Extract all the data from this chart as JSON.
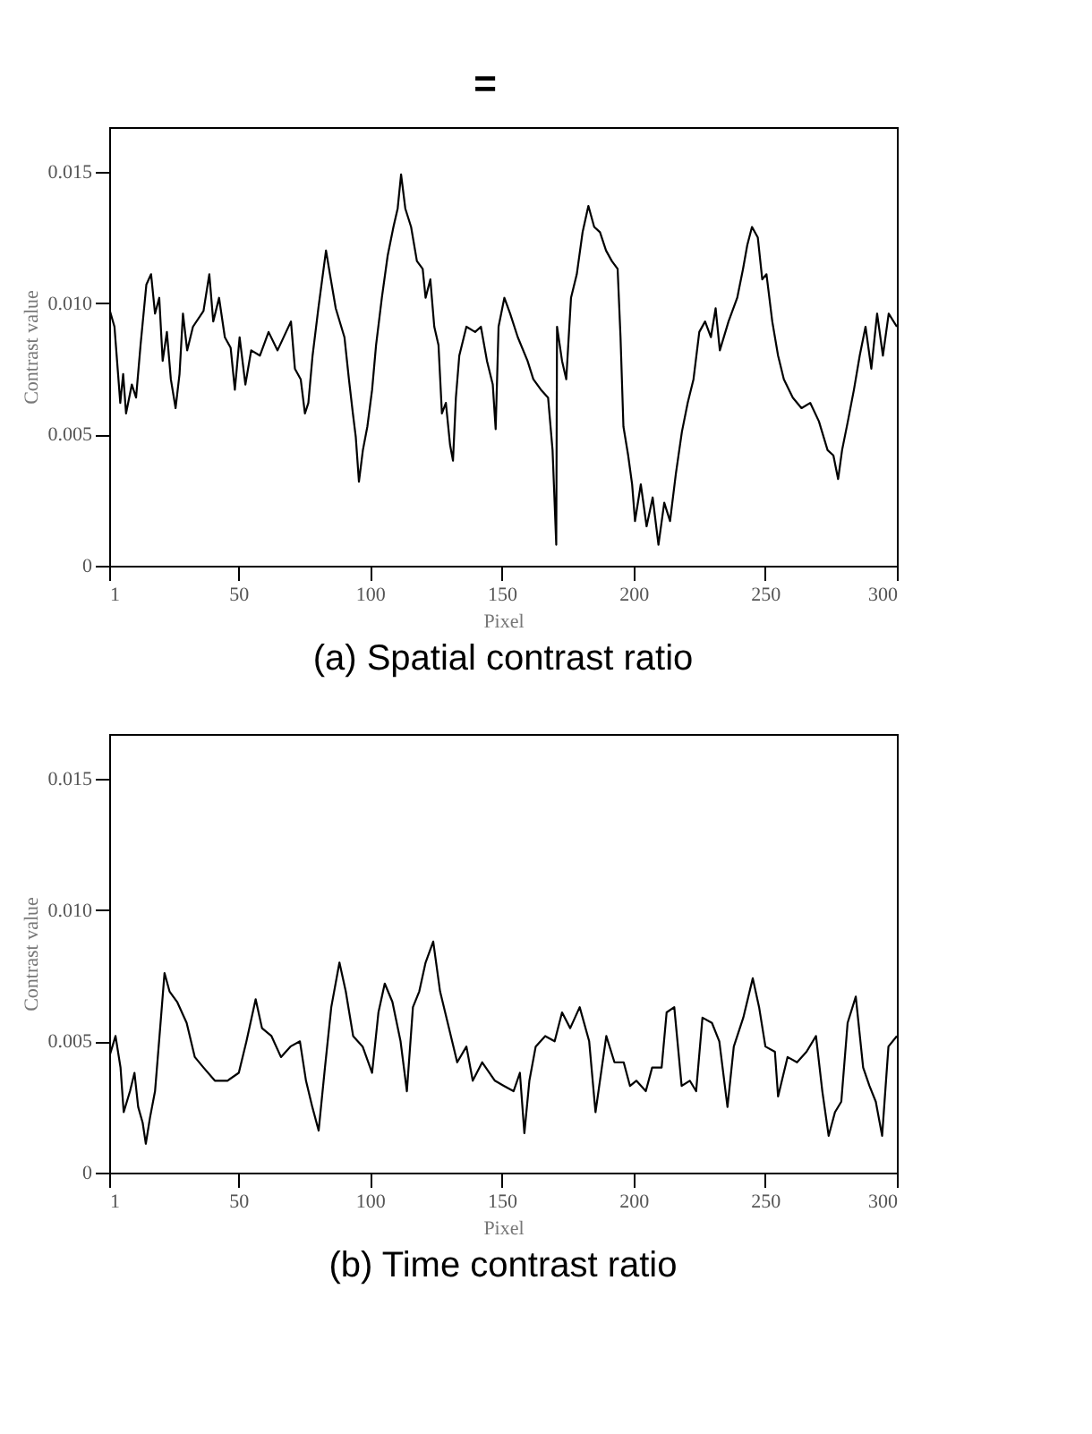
{
  "chart_data": [
    {
      "type": "line",
      "title": "(a)  Spatial contrast ratio",
      "annotations": [
        "="
      ],
      "xlabel": "Pixel",
      "ylabel": "Contrast value",
      "xlim": [
        1,
        300
      ],
      "xticks": [
        1,
        50,
        100,
        150,
        200,
        250,
        300
      ],
      "ylim": [
        0,
        0.0167
      ],
      "yticks": [
        0,
        0.005,
        {
          "value": 0.01,
          "label": "0.010"
        },
        0.015
      ],
      "grid": false,
      "series": [
        {
          "color": "#000000",
          "line_style": "solid",
          "x": [
            1,
            3,
            5.2,
            6.3,
            7.4,
            9.6,
            11.2,
            12.9,
            15.1,
            16.9,
            18.4,
            20,
            21.3,
            22.9,
            24.4,
            26.2,
            27.7,
            29,
            30.6,
            32.8,
            36.8,
            39,
            40.5,
            42.7,
            44.9,
            47.1,
            48.7,
            50.5,
            52.7,
            54.9,
            58.2,
            61.5,
            64.9,
            70,
            71.5,
            73.7,
            75.3,
            76.6,
            78.2,
            80.4,
            83.3,
            84.8,
            87,
            90.3,
            92,
            93.5,
            94.6,
            95.8,
            97.3,
            99,
            100.8,
            102.3,
            104.5,
            106.7,
            108.9,
            110.5,
            111.8,
            113.4,
            115.6,
            117.8,
            120,
            121.1,
            122.9,
            124.4,
            126,
            127.3,
            128.8,
            130.4,
            131.5,
            132.6,
            133.9,
            136.6,
            139.9,
            142.1,
            144.4,
            146.6,
            147.7,
            148.8,
            151,
            153.2,
            156.1,
            159.8,
            162,
            164.9,
            167.6,
            169.3,
            170.7,
            171,
            172.9,
            174.5,
            176.3,
            178.5,
            180.7,
            182.9,
            185.1,
            187.3,
            189.6,
            191.8,
            194,
            195.1,
            196.2,
            198,
            199.5,
            200.6,
            202.8,
            205,
            207.3,
            209.5,
            211.7,
            213.9,
            216.1,
            218.4,
            220.6,
            222.8,
            225,
            227.2,
            229.4,
            231.2,
            232.8,
            236.1,
            239.4,
            241.6,
            243.2,
            245,
            247.2,
            248.9,
            250.5,
            252.7,
            254.9,
            257.1,
            260.5,
            263.8,
            267.1,
            270.4,
            273.7,
            275.9,
            277.7,
            279.2,
            281.4,
            283.7,
            285.9,
            288.1,
            290.3,
            292.5,
            294.7,
            296.9,
            300
          ],
          "values": [
            0.0098,
            0.0091,
            0.0062,
            0.0073,
            0.0058,
            0.0069,
            0.0064,
            0.0084,
            0.0107,
            0.0111,
            0.0096,
            0.0102,
            0.0078,
            0.0089,
            0.0071,
            0.006,
            0.0073,
            0.0096,
            0.0082,
            0.0091,
            0.0097,
            0.0111,
            0.0093,
            0.0102,
            0.0087,
            0.0083,
            0.0067,
            0.0087,
            0.0069,
            0.0082,
            0.008,
            0.0089,
            0.0082,
            0.0093,
            0.0075,
            0.0071,
            0.0058,
            0.0062,
            0.008,
            0.0098,
            0.012,
            0.0111,
            0.0098,
            0.0087,
            0.0071,
            0.0058,
            0.0049,
            0.0032,
            0.0044,
            0.0053,
            0.0067,
            0.0084,
            0.0102,
            0.0118,
            0.0129,
            0.0136,
            0.0149,
            0.0136,
            0.0129,
            0.0116,
            0.0113,
            0.0102,
            0.0109,
            0.0091,
            0.0084,
            0.0058,
            0.0062,
            0.0046,
            0.004,
            0.0064,
            0.008,
            0.0091,
            0.0089,
            0.0091,
            0.0078,
            0.0069,
            0.0052,
            0.0091,
            0.0102,
            0.0096,
            0.0087,
            0.0078,
            0.0071,
            0.0067,
            0.0064,
            0.0044,
            0.0008,
            0.0091,
            0.0078,
            0.0071,
            0.0102,
            0.0111,
            0.0127,
            0.0137,
            0.0129,
            0.0127,
            0.012,
            0.0116,
            0.0113,
            0.0087,
            0.0053,
            0.0042,
            0.0031,
            0.0017,
            0.0031,
            0.0015,
            0.0026,
            0.0008,
            0.0024,
            0.0017,
            0.0035,
            0.0051,
            0.0062,
            0.0071,
            0.0089,
            0.0093,
            0.0087,
            0.0098,
            0.0082,
            0.0093,
            0.0102,
            0.0113,
            0.0122,
            0.0129,
            0.0125,
            0.0109,
            0.0111,
            0.0093,
            0.008,
            0.0071,
            0.0064,
            0.006,
            0.0062,
            0.0055,
            0.0044,
            0.0042,
            0.0033,
            0.0044,
            0.0055,
            0.0067,
            0.008,
            0.0091,
            0.0075,
            0.0096,
            0.008,
            0.0096,
            0.0091
          ]
        }
      ]
    },
    {
      "type": "line",
      "title": "(b)  Time contrast ratio",
      "xlabel": "Pixel",
      "ylabel": "Contrast value",
      "xlim": [
        1,
        300
      ],
      "xticks": [
        1,
        50,
        100,
        150,
        200,
        250,
        300
      ],
      "ylim": [
        0,
        0.0167
      ],
      "yticks": [
        0,
        0.005,
        {
          "value": 0.01,
          "label": "0.010"
        },
        0.015
      ],
      "grid": false,
      "series": [
        {
          "color": "#000000",
          "line_style": "solid",
          "x": [
            1,
            3.4,
            5.3,
            6.5,
            8.9,
            10.6,
            12,
            13.7,
            14.9,
            16.5,
            18.4,
            20.1,
            22,
            23.9,
            26.8,
            30.4,
            33.5,
            36.8,
            41.1,
            45.9,
            50.2,
            53.1,
            56.6,
            59,
            62.6,
            66.2,
            69.8,
            73.4,
            75.7,
            78.1,
            80.5,
            82.9,
            85.3,
            88.4,
            90.8,
            93.6,
            97.2,
            100.8,
            103.2,
            105.6,
            108.5,
            111.6,
            114,
            116.3,
            118.7,
            121.1,
            124,
            126.6,
            129.5,
            133.1,
            136.6,
            139,
            142.6,
            147.4,
            150.9,
            154.5,
            156.9,
            158.6,
            160.5,
            162.9,
            166.5,
            170.1,
            172.9,
            176,
            179.6,
            183.2,
            185.6,
            188,
            189.7,
            192.8,
            196.3,
            198.7,
            201.1,
            204.7,
            207.1,
            210.7,
            212.6,
            215.5,
            218.3,
            221.4,
            223.8,
            226.2,
            229.8,
            232.6,
            235.7,
            238.1,
            241.7,
            245.3,
            247.7,
            250.1,
            253.7,
            254.9,
            258.5,
            262.1,
            265.7,
            269.3,
            271.7,
            274.1,
            276.5,
            278.9,
            281.3,
            284.4,
            287.2,
            289.6,
            292,
            294.4,
            296.8,
            300
          ],
          "values": [
            0.0044,
            0.0052,
            0.004,
            0.0023,
            0.0031,
            0.0038,
            0.0025,
            0.0019,
            0.0011,
            0.0021,
            0.0031,
            0.0052,
            0.0076,
            0.0069,
            0.0065,
            0.0057,
            0.0044,
            0.004,
            0.0035,
            0.0035,
            0.0038,
            0.005,
            0.0066,
            0.0055,
            0.0052,
            0.0044,
            0.0048,
            0.005,
            0.0035,
            0.0025,
            0.0016,
            0.004,
            0.0063,
            0.008,
            0.0069,
            0.0052,
            0.0048,
            0.0038,
            0.0061,
            0.0072,
            0.0065,
            0.005,
            0.0031,
            0.0063,
            0.0069,
            0.008,
            0.0088,
            0.0069,
            0.0057,
            0.0042,
            0.0048,
            0.0035,
            0.0042,
            0.0035,
            0.0033,
            0.0031,
            0.0038,
            0.0015,
            0.0035,
            0.0048,
            0.0052,
            0.005,
            0.0061,
            0.0055,
            0.0063,
            0.005,
            0.0023,
            0.004,
            0.0052,
            0.0042,
            0.0042,
            0.0033,
            0.0035,
            0.0031,
            0.004,
            0.004,
            0.0061,
            0.0063,
            0.0033,
            0.0035,
            0.0031,
            0.0059,
            0.0057,
            0.005,
            0.0025,
            0.0048,
            0.0059,
            0.0074,
            0.0063,
            0.0048,
            0.0046,
            0.0029,
            0.0044,
            0.0042,
            0.0046,
            0.0052,
            0.0031,
            0.0014,
            0.0023,
            0.0027,
            0.0057,
            0.0067,
            0.004,
            0.0033,
            0.0027,
            0.0014,
            0.0048,
            0.0052
          ]
        }
      ]
    }
  ]
}
